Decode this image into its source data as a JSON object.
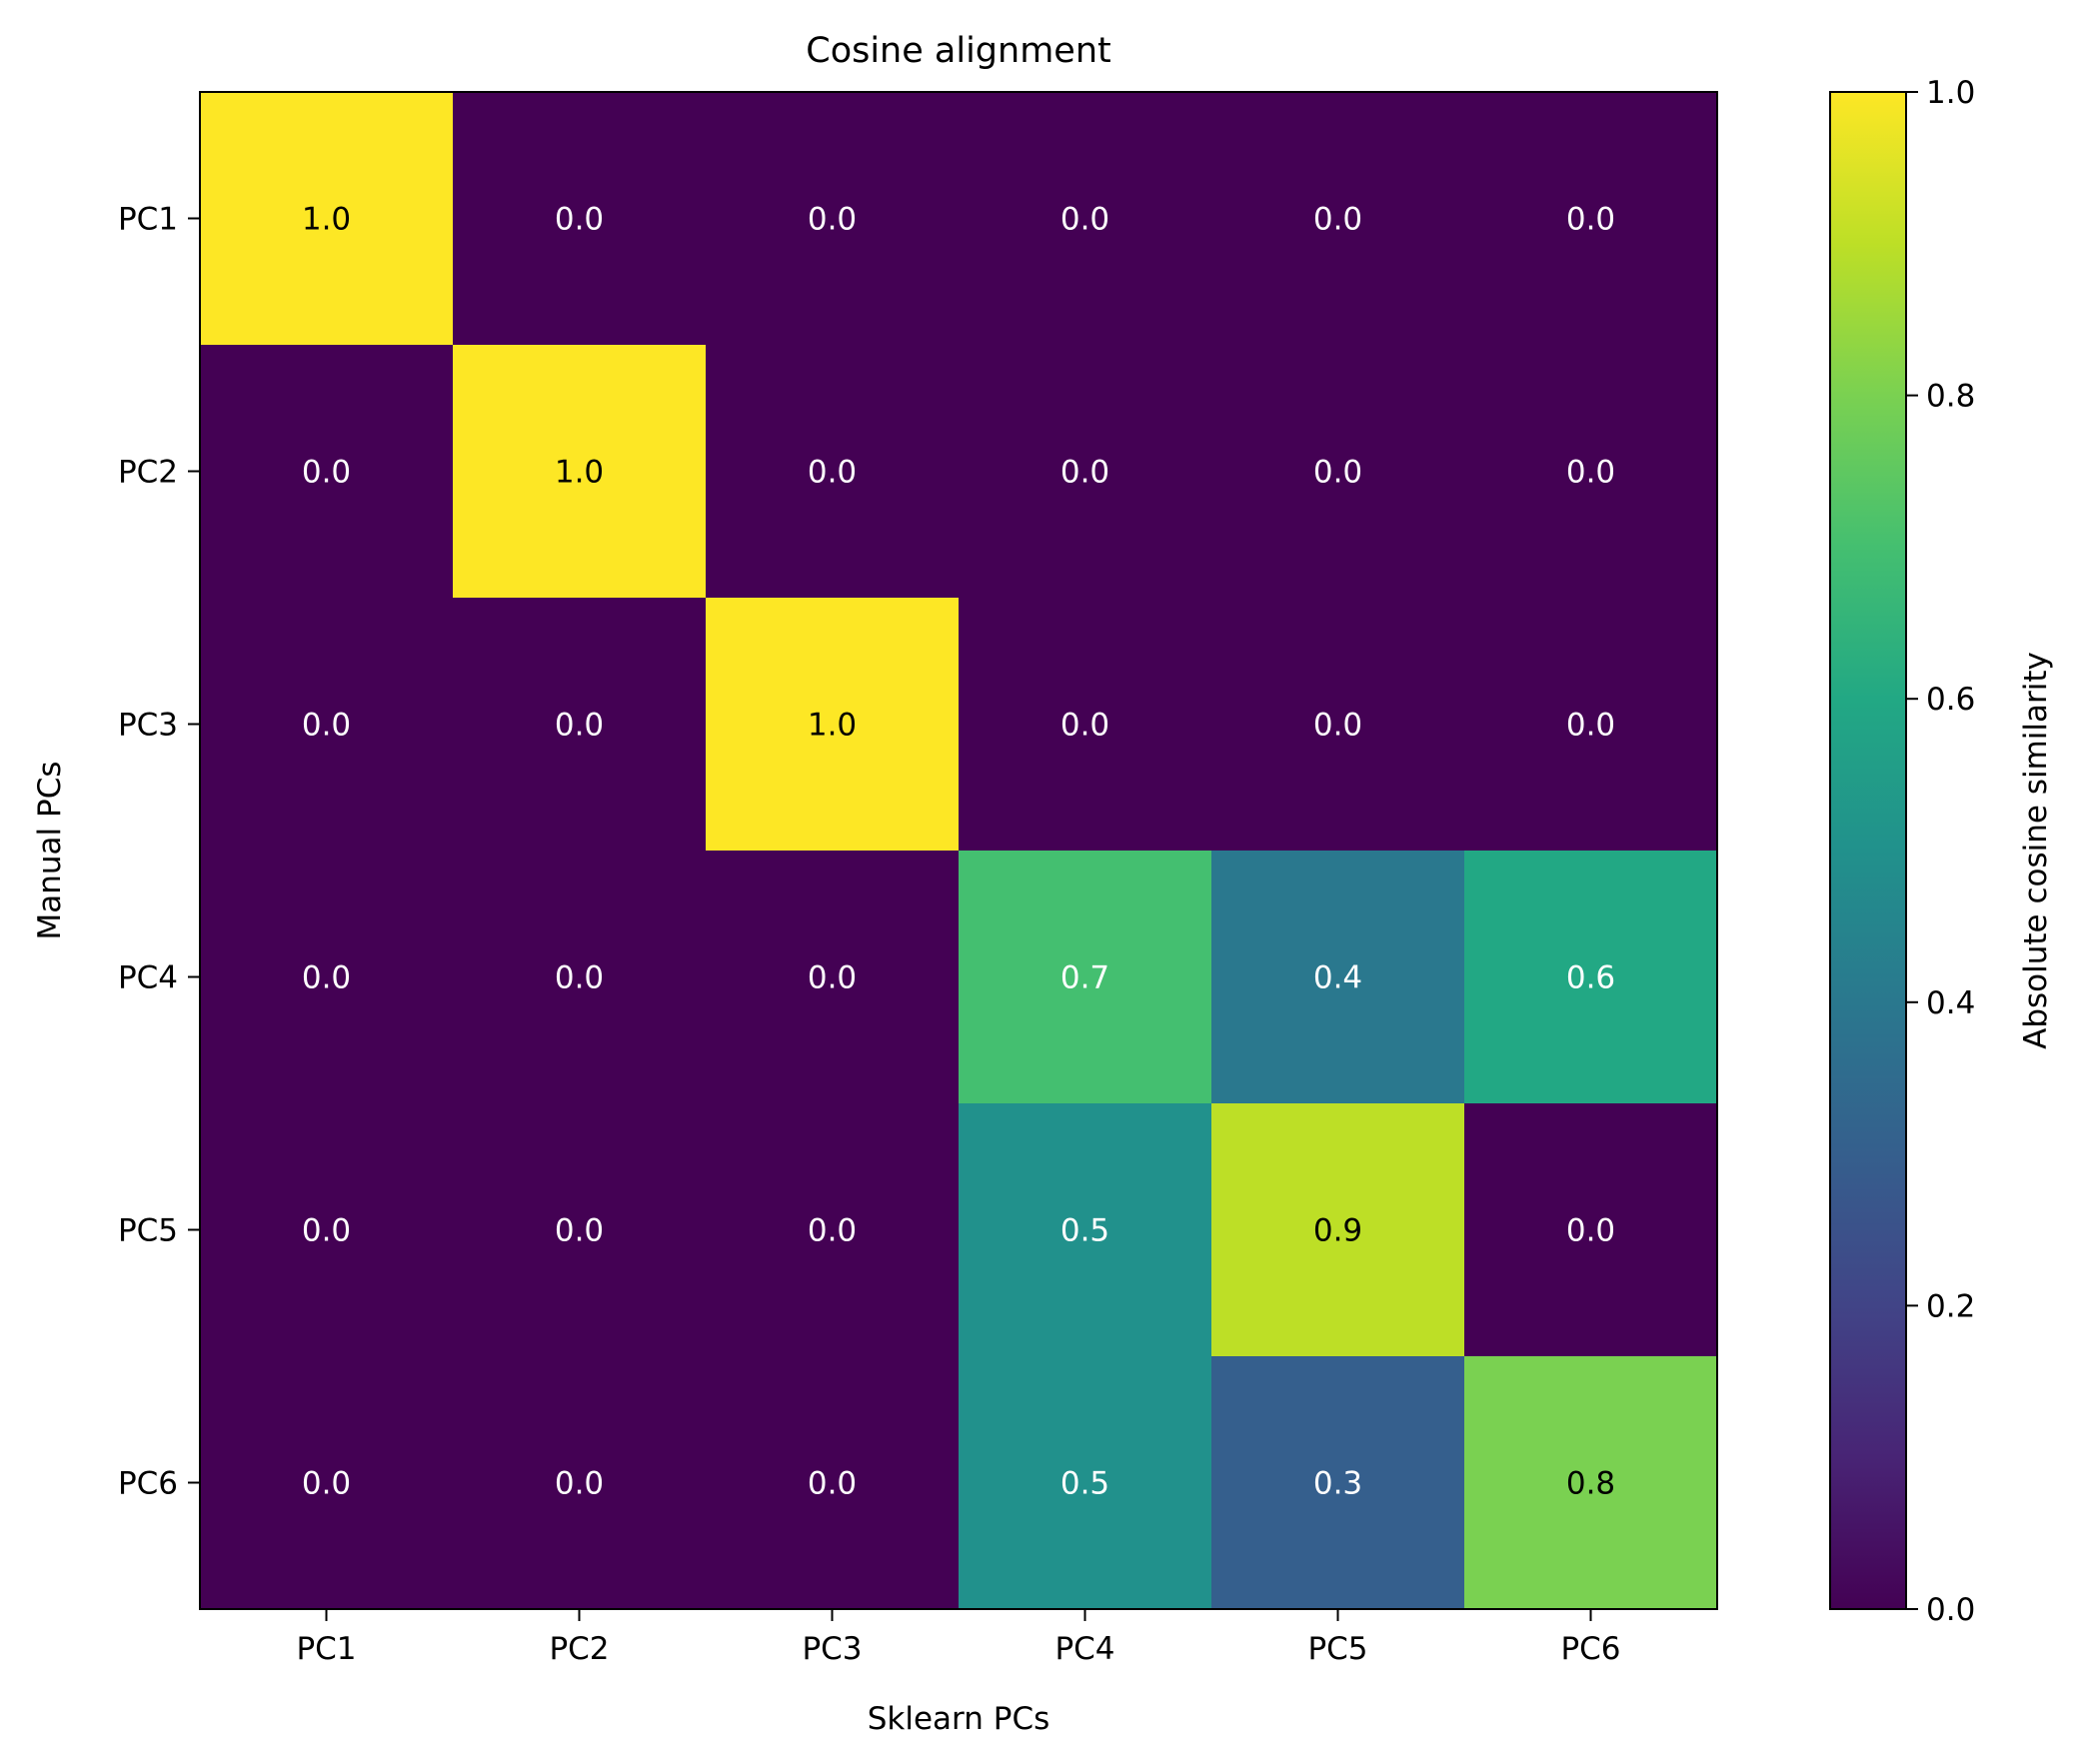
{
  "chart_data": {
    "type": "heatmap",
    "title": "Cosine alignment",
    "xlabel": "Sklearn PCs",
    "ylabel": "Manual PCs",
    "x_categories": [
      "PC1",
      "PC2",
      "PC3",
      "PC4",
      "PC5",
      "PC6"
    ],
    "y_categories": [
      "PC1",
      "PC2",
      "PC3",
      "PC4",
      "PC5",
      "PC6"
    ],
    "values": [
      [
        1.0,
        0.0,
        0.0,
        0.0,
        0.0,
        0.0
      ],
      [
        0.0,
        1.0,
        0.0,
        0.0,
        0.0,
        0.0
      ],
      [
        0.0,
        0.0,
        1.0,
        0.0,
        0.0,
        0.0
      ],
      [
        0.0,
        0.0,
        0.0,
        0.7,
        0.4,
        0.6
      ],
      [
        0.0,
        0.0,
        0.0,
        0.5,
        0.9,
        0.0
      ],
      [
        0.0,
        0.0,
        0.0,
        0.5,
        0.3,
        0.8
      ]
    ],
    "cell_labels": [
      [
        "1.0",
        "0.0",
        "0.0",
        "0.0",
        "0.0",
        "0.0"
      ],
      [
        "0.0",
        "1.0",
        "0.0",
        "0.0",
        "0.0",
        "0.0"
      ],
      [
        "0.0",
        "0.0",
        "1.0",
        "0.0",
        "0.0",
        "0.0"
      ],
      [
        "0.0",
        "0.0",
        "0.0",
        "0.7",
        "0.4",
        "0.6"
      ],
      [
        "0.0",
        "0.0",
        "0.0",
        "0.5",
        "0.9",
        "0.0"
      ],
      [
        "0.0",
        "0.0",
        "0.0",
        "0.5",
        "0.3",
        "0.8"
      ]
    ],
    "colormap": "viridis",
    "vmin": 0.0,
    "vmax": 1.0,
    "colorbar": {
      "label": "Absolute cosine similarity",
      "ticks": [
        0.0,
        0.2,
        0.4,
        0.6,
        0.8,
        1.0
      ],
      "tick_labels": [
        "0.0",
        "0.2",
        "0.4",
        "0.6",
        "0.8",
        "1.0"
      ],
      "placement": "right"
    },
    "grid": false
  }
}
